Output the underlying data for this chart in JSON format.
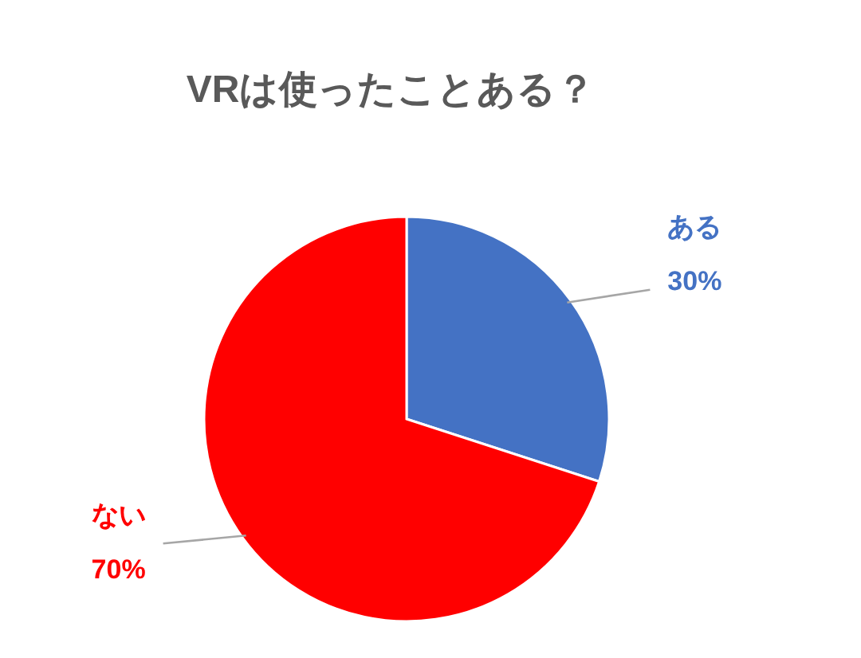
{
  "chart_data": {
    "type": "pie",
    "title": "VRは使ったことある？",
    "categories": [
      "ある",
      "ない"
    ],
    "values": [
      30,
      70
    ],
    "colors": [
      "#4472c4",
      "#ff0000"
    ],
    "value_labels": [
      "30%",
      "70%"
    ]
  }
}
